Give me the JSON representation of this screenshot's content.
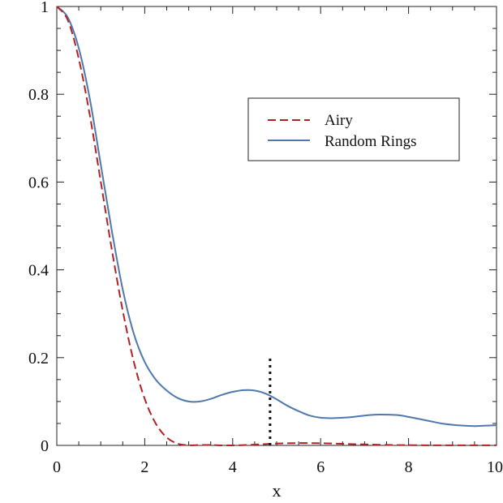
{
  "chart_data": {
    "type": "line",
    "title": "",
    "xlabel": "x",
    "ylabel": "",
    "xlim": [
      0,
      10
    ],
    "ylim": [
      0,
      1
    ],
    "x_ticks": [
      0,
      2,
      4,
      6,
      8,
      10
    ],
    "x_tick_labels": [
      "0",
      "2",
      "4",
      "6",
      "8",
      "10"
    ],
    "y_ticks": [
      0,
      0.2,
      0.4,
      0.6,
      0.8,
      1
    ],
    "y_tick_labels": [
      "0",
      "0.2",
      "0.4",
      "0.6",
      "0.8",
      "1"
    ],
    "grid": false,
    "legend_position": "top-right",
    "series": [
      {
        "name": "Airy",
        "color": "#b22222",
        "style": "dashed",
        "x": [
          0,
          0.25,
          0.5,
          0.75,
          1,
          1.25,
          1.5,
          1.75,
          2,
          2.25,
          2.5,
          2.75,
          3,
          3.25,
          3.5,
          3.75,
          4,
          4.25,
          4.5,
          4.75,
          5,
          5.25,
          5.5,
          5.75,
          6,
          6.25,
          6.5,
          6.75,
          7,
          7.25,
          7.5,
          7.75,
          8,
          8.25,
          8.5,
          8.75,
          9,
          9.25,
          9.5,
          9.75,
          10
        ],
        "y": [
          1,
          0.969,
          0.881,
          0.753,
          0.601,
          0.447,
          0.307,
          0.191,
          0.106,
          0.05,
          0.018,
          0.004,
          0.0003,
          0.0009,
          0.0009,
          0.0001,
          5e-05,
          0.0007,
          0.0018,
          0.0031,
          0.0042,
          0.0048,
          0.0052,
          0.0052,
          0.0049,
          0.0044,
          0.0036,
          0.0028,
          0.0022,
          0.0016,
          0.0012,
          0.0008,
          0.0006,
          0.0004,
          0.0003,
          0.0003,
          0.0003,
          0.0003,
          0.0003,
          0.0003,
          0.0002
        ]
      },
      {
        "name": "Random Rings",
        "color": "#4f79ad",
        "style": "solid",
        "x": [
          0,
          0.25,
          0.5,
          0.75,
          1,
          1.25,
          1.5,
          1.75,
          2,
          2.25,
          2.5,
          2.75,
          3,
          3.25,
          3.5,
          3.75,
          4,
          4.25,
          4.5,
          4.75,
          5,
          5.25,
          5.5,
          5.75,
          6,
          6.25,
          6.5,
          6.75,
          7,
          7.25,
          7.5,
          7.75,
          8,
          8.25,
          8.5,
          8.75,
          9,
          9.25,
          9.5,
          9.75,
          10
        ],
        "y": [
          1,
          0.975,
          0.905,
          0.79,
          0.64,
          0.49,
          0.355,
          0.255,
          0.19,
          0.15,
          0.125,
          0.108,
          0.1,
          0.1,
          0.106,
          0.115,
          0.122,
          0.126,
          0.125,
          0.118,
          0.105,
          0.09,
          0.078,
          0.068,
          0.063,
          0.062,
          0.063,
          0.065,
          0.068,
          0.07,
          0.07,
          0.069,
          0.065,
          0.06,
          0.055,
          0.05,
          0.047,
          0.045,
          0.044,
          0.045,
          0.046
        ]
      }
    ],
    "annotations": [
      {
        "type": "vertical-dotted-line",
        "x": 4.85,
        "y_from": 0,
        "y_to": 0.205,
        "color": "#111111"
      }
    ]
  }
}
